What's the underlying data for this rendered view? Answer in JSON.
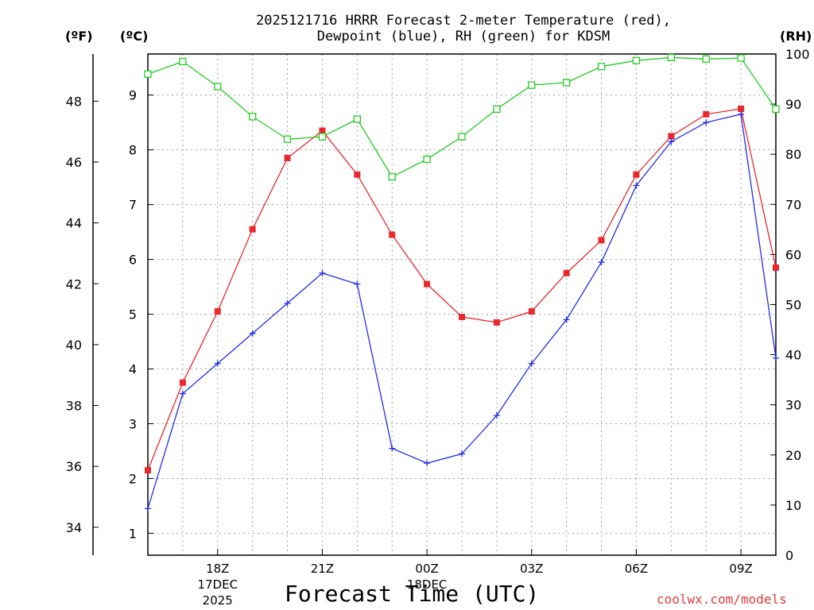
{
  "header": {
    "title_line1": "2025121716 HRRR Forecast 2-meter Temperature (red),",
    "title_line2": "Dewpoint (blue), RH (green) for KDSM"
  },
  "units": {
    "fahrenheit": "(ºF)",
    "celsius": "(ºC)",
    "rh": "(RH)"
  },
  "footer": {
    "xlabel": "Forecast Time (UTC)",
    "credit": "coolwx.com/models"
  },
  "colors": {
    "temperature": "#e8282c",
    "dewpoint": "#1f2ee8",
    "rh": "#22cc22",
    "grid": "#a0a0a0"
  },
  "chart_data": {
    "type": "line",
    "title": "2025121716 HRRR Forecast 2-meter Temperature (red), Dewpoint (blue), RH (green) for KDSM",
    "xlabel": "Forecast Time (UTC)",
    "x": [
      16,
      17,
      18,
      19,
      20,
      21,
      22,
      23,
      24,
      25,
      26,
      27,
      28,
      29,
      30,
      31,
      32,
      33,
      34
    ],
    "xlim": [
      16,
      34
    ],
    "x_ticks": [
      {
        "x": 18,
        "label": "18Z",
        "date": "17DEC",
        "year": "2025"
      },
      {
        "x": 21,
        "label": "21Z"
      },
      {
        "x": 24,
        "label": "00Z",
        "date": "18DEC"
      },
      {
        "x": 27,
        "label": "03Z"
      },
      {
        "x": 30,
        "label": "06Z"
      },
      {
        "x": 33,
        "label": "09Z"
      }
    ],
    "y_celsius": {
      "label": "(ºC)",
      "lim": [
        0.6,
        9.75
      ],
      "ticks": [
        1,
        2,
        3,
        4,
        5,
        6,
        7,
        8,
        9
      ]
    },
    "y_fahrenheit": {
      "label": "(ºF)",
      "ticks": [
        34,
        36,
        38,
        40,
        42,
        44,
        46,
        48
      ]
    },
    "y_rh": {
      "label": "(RH)",
      "lim": [
        0,
        100
      ],
      "ticks": [
        0,
        10,
        20,
        30,
        40,
        50,
        60,
        70,
        80,
        90,
        100
      ]
    },
    "series": [
      {
        "name": "Temperature",
        "axis": "celsius",
        "color": "#e8282c",
        "marker": "filled-square",
        "values": [
          2.15,
          3.75,
          5.05,
          6.55,
          7.85,
          8.35,
          7.55,
          6.45,
          5.55,
          4.95,
          4.85,
          5.05,
          5.75,
          6.35,
          7.55,
          8.25,
          8.65,
          8.75,
          5.85
        ]
      },
      {
        "name": "Dewpoint",
        "axis": "celsius",
        "color": "#1f2ee8",
        "marker": "plus",
        "values": [
          1.45,
          3.55,
          4.1,
          4.65,
          5.2,
          5.75,
          5.55,
          2.55,
          2.28,
          2.45,
          3.15,
          4.1,
          4.9,
          5.95,
          7.35,
          8.15,
          8.5,
          8.65,
          4.2
        ]
      },
      {
        "name": "RH",
        "axis": "rh",
        "color": "#22cc22",
        "marker": "open-square",
        "values": [
          96,
          98.5,
          93.5,
          87.5,
          83,
          83.5,
          87,
          75.5,
          79,
          83.5,
          89,
          93.8,
          94.3,
          97.5,
          98.7,
          99.3,
          99,
          99.2,
          89
        ]
      }
    ]
  }
}
